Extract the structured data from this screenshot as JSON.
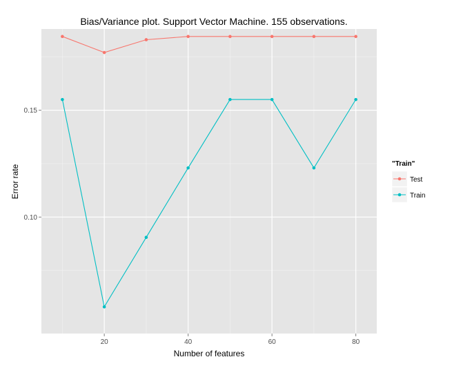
{
  "chart_data": {
    "type": "line",
    "title": "Bias/Variance plot. Support Vector Machine. 155 observations.",
    "xlabel": "Number of features",
    "ylabel": "Error rate",
    "xlim": [
      5,
      85
    ],
    "ylim": [
      0.0455,
      0.188
    ],
    "x_ticks": [
      20,
      40,
      60,
      80
    ],
    "x_tick_labels": [
      "20",
      "40",
      "60",
      "80"
    ],
    "y_ticks": [
      0.1,
      0.15
    ],
    "y_tick_labels": [
      "0.10",
      "0.15"
    ],
    "grid": true,
    "background": "#e5e5e5",
    "x": [
      10,
      20,
      30,
      40,
      50,
      60,
      70,
      80
    ],
    "series": [
      {
        "name": "Test",
        "color": "#f8766d",
        "values": [
          0.1845,
          0.177,
          0.183,
          0.1845,
          0.1845,
          0.1845,
          0.1845,
          0.1845
        ]
      },
      {
        "name": "Train",
        "color": "#00bfc4",
        "values": [
          0.155,
          0.058,
          0.0905,
          0.123,
          0.155,
          0.155,
          0.123,
          0.155
        ]
      }
    ],
    "legend": {
      "title": "\"Train\"",
      "position": "right"
    }
  }
}
